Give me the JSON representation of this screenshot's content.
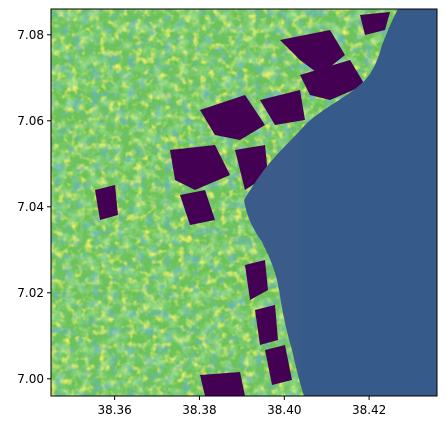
{
  "chart_data": {
    "type": "heatmap",
    "title": "",
    "xlabel": "",
    "ylabel": "",
    "xlim": [
      38.345,
      38.436
    ],
    "ylim": [
      6.996,
      7.086
    ],
    "x_ticks": [
      "38.36",
      "38.38",
      "38.40",
      "38.42"
    ],
    "x_tick_values": [
      38.36,
      38.38,
      38.4,
      38.42
    ],
    "y_ticks": [
      "7.08",
      "7.06",
      "7.04",
      "7.02",
      "7.00"
    ],
    "y_tick_values": [
      7.08,
      7.06,
      7.04,
      7.02,
      7.0
    ],
    "colormap": "viridis",
    "grid": false,
    "legend": "none",
    "colors": {
      "dark_purple": "#440154",
      "teal": "#21918c",
      "green": "#5ec962",
      "yellow": "#fde725",
      "water": "#3b5c8a"
    }
  }
}
